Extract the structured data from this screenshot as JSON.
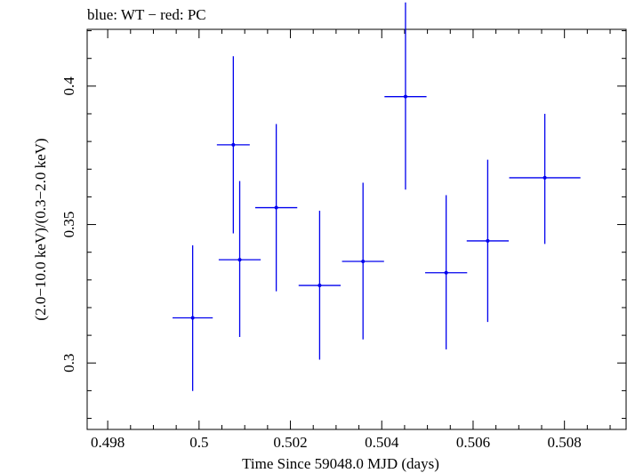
{
  "chart_data": {
    "type": "scatter",
    "title": "blue: WT − red: PC",
    "xlabel": "Time Since 59048.0 MJD (days)",
    "ylabel": "(2.0−10.0 keV)/(0.3−2.0 keV)",
    "xlim": [
      0.49755,
      0.50935
    ],
    "ylim": [
      0.276,
      0.4205
    ],
    "x_ticks": [
      0.498,
      0.5,
      0.502,
      0.504,
      0.506,
      0.508
    ],
    "x_tick_labels": [
      "0.498",
      "0.5",
      "0.502",
      "0.504",
      "0.506",
      "0.508"
    ],
    "y_ticks": [
      0.3,
      0.35,
      0.4
    ],
    "y_tick_labels": [
      "0.3",
      "0.35",
      "0.4"
    ],
    "grid": false,
    "series": [
      {
        "color": "#0000ee",
        "points": [
          {
            "x": 0.50089,
            "xerr": 0.00046,
            "y": 0.3373,
            "yerr_low": 0.0279,
            "yerr_high": 0.0284
          },
          {
            "x": 0.49986,
            "xerr": 0.00044,
            "y": 0.3163,
            "yerr_low": 0.0264,
            "yerr_high": 0.0262
          },
          {
            "x": 0.50075,
            "xerr": 0.00036,
            "y": 0.3788,
            "yerr_low": 0.032,
            "yerr_high": 0.032
          },
          {
            "x": 0.50169,
            "xerr": 0.00046,
            "y": 0.3561,
            "yerr_low": 0.0302,
            "yerr_high": 0.0302
          },
          {
            "x": 0.50264,
            "xerr": 0.00046,
            "y": 0.328,
            "yerr_low": 0.0268,
            "yerr_high": 0.027
          },
          {
            "x": 0.50359,
            "xerr": 0.00046,
            "y": 0.3367,
            "yerr_low": 0.0282,
            "yerr_high": 0.0284
          },
          {
            "x": 0.50452,
            "xerr": 0.00046,
            "y": 0.3962,
            "yerr_low": 0.0336,
            "yerr_high": 0.034
          },
          {
            "x": 0.50541,
            "xerr": 0.00046,
            "y": 0.3326,
            "yerr_low": 0.0277,
            "yerr_high": 0.028
          },
          {
            "x": 0.50632,
            "xerr": 0.00046,
            "y": 0.3441,
            "yerr_low": 0.0293,
            "yerr_high": 0.0293
          },
          {
            "x": 0.50757,
            "xerr": 0.00078,
            "y": 0.3669,
            "yerr_low": 0.0239,
            "yerr_high": 0.0231
          }
        ]
      }
    ]
  }
}
